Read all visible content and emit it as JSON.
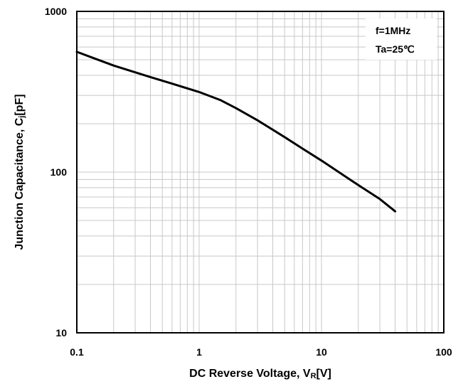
{
  "chart_data": {
    "type": "line",
    "xlabel_main": "DC Reverse Voltage, V",
    "xlabel_sub": "R",
    "xlabel_unit": "[V]",
    "ylabel_main": "Junction Capacitance, C",
    "ylabel_sub": "j",
    "ylabel_unit": "[pF]",
    "x_scale": "log",
    "y_scale": "log",
    "xlim": [
      0.1,
      100
    ],
    "ylim": [
      10,
      1000
    ],
    "x_ticks": [
      {
        "value": 0.1,
        "label": "0.1"
      },
      {
        "value": 1,
        "label": "1"
      },
      {
        "value": 10,
        "label": "10"
      },
      {
        "value": 100,
        "label": "100"
      }
    ],
    "y_ticks": [
      {
        "value": 10,
        "label": "10"
      },
      {
        "value": 100,
        "label": "100"
      },
      {
        "value": 1000,
        "label": "1000"
      }
    ],
    "grid": true,
    "annotations": [
      {
        "text": "f=1MHz"
      },
      {
        "text": "Ta=25℃"
      }
    ],
    "annotation_position": "top-right",
    "series": [
      {
        "x": [
          0.1,
          0.2,
          0.4,
          0.6,
          1,
          1.5,
          2,
          3,
          5,
          7,
          10,
          15,
          20,
          30,
          40
        ],
        "values": [
          560,
          460,
          390,
          355,
          315,
          280,
          250,
          210,
          165,
          140,
          118,
          96,
          83,
          68,
          57
        ]
      }
    ]
  }
}
